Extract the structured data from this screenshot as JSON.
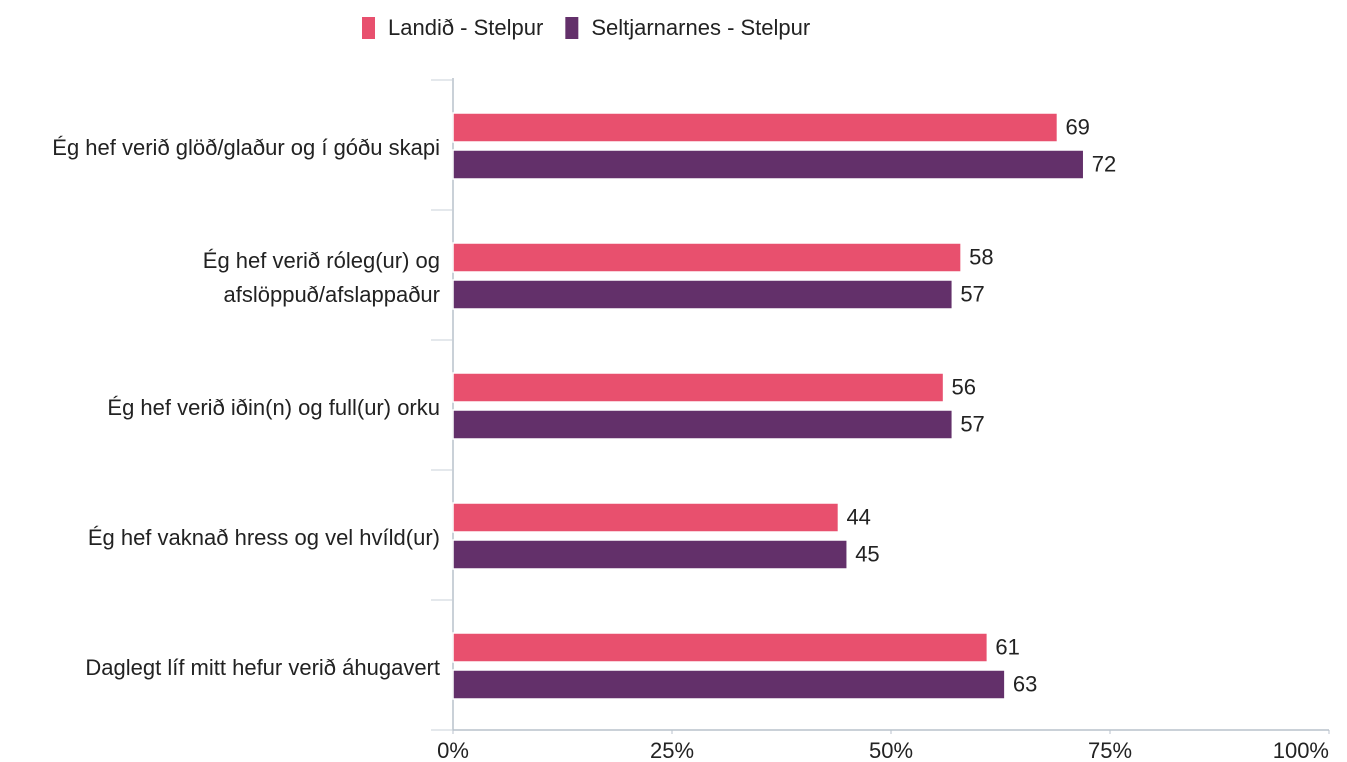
{
  "chart_data": {
    "type": "hbar",
    "categories": [
      "Ég hef verið glöð/glaður og í góðu skapi",
      "Ég hef verið róleg(ur) og afslöppuð/afslappaður",
      "Ég hef verið iðin(n) og full(ur) orku",
      "Ég hef vaknað hress og vel hvíld(ur)",
      "Daglegt líf mitt hefur verið áhugavert"
    ],
    "series": [
      {
        "name": "Landið - Stelpur",
        "color": "#e8506e",
        "values": [
          69,
          58,
          56,
          44,
          61
        ]
      },
      {
        "name": "Seltjarnarnes - Stelpur",
        "color": "#63306a",
        "values": [
          72,
          57,
          57,
          45,
          63
        ]
      }
    ],
    "xlim": [
      0,
      100
    ],
    "xticks": [
      {
        "value": 0,
        "label": "0%"
      },
      {
        "value": 25,
        "label": "25%"
      },
      {
        "value": 50,
        "label": "50%"
      },
      {
        "value": 75,
        "label": "75%"
      },
      {
        "value": 100,
        "label": "100%"
      }
    ],
    "legend": "top"
  }
}
